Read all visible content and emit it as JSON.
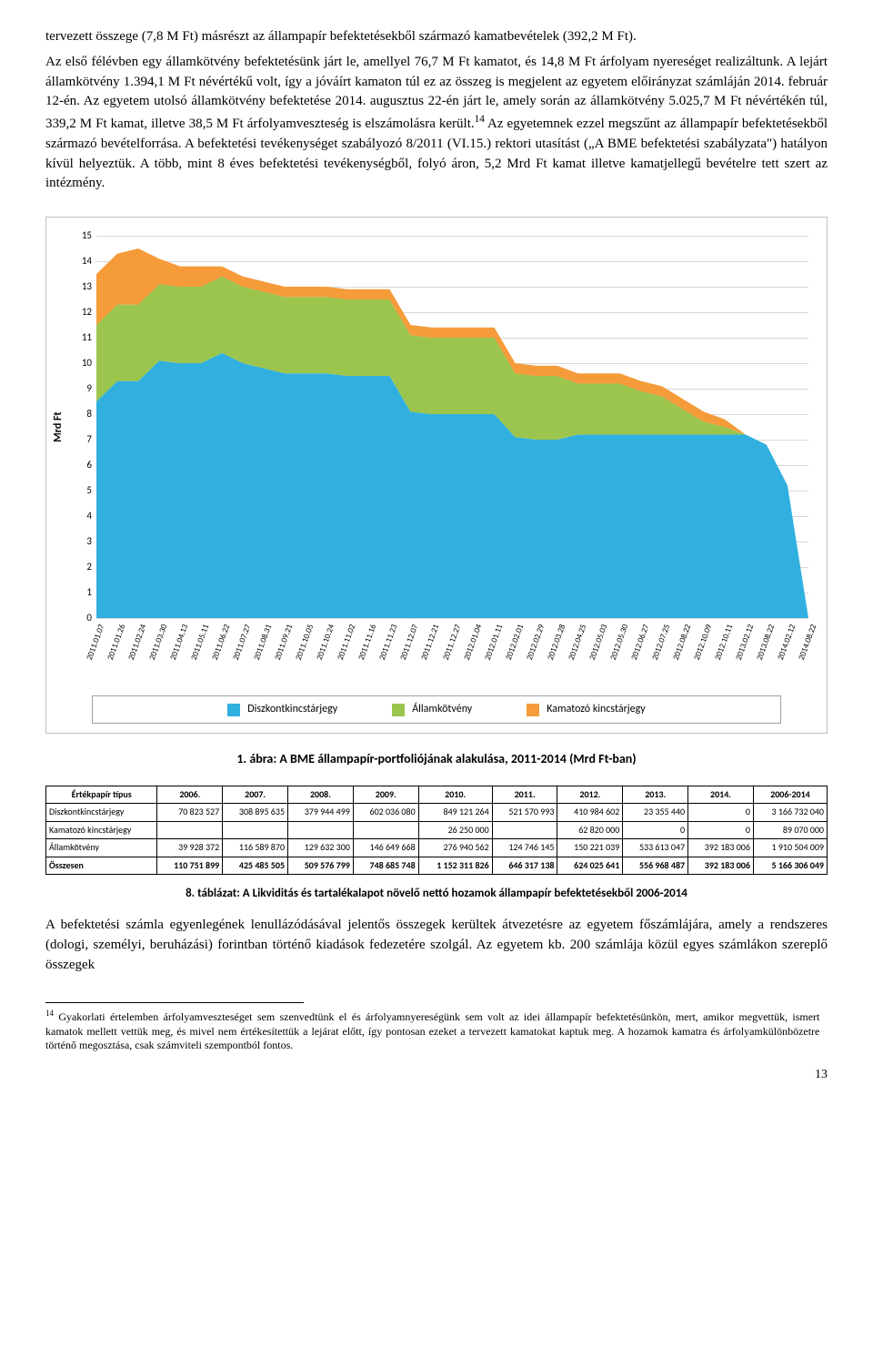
{
  "paragraphs": {
    "p1": "tervezett összege (7,8 M Ft) másrészt az állampapír befektetésekből származó kamatbevételek (392,2 M Ft).",
    "p2_prefix": "Az első félévben egy államkötvény befektetésünk járt le, amellyel 76,7 M Ft kamatot, és 14,8 M Ft árfolyam nyereséget realizáltunk. A lejárt államkötvény 1.394,1 M Ft névértékű volt, így a jóváírt kamaton túl ez az összeg is megjelent az egyetem előirányzat számláján 2014. február 12-én. Az egyetem utolsó államkötvény befektetése 2014. augusztus 22-én járt le, amely során az államkötvény 5.025,7 M Ft névértékén túl, 339,2 M Ft kamat, illetve 38,5 M Ft árfolyamveszteség is elszámolásra került.",
    "sup14": "14",
    "p2_suffix": " Az egyetemnek ezzel megszűnt az állampapír befektetésekből származó bevételforrása. A befektetési tevékenységet szabályozó 8/2011 (VI.15.) rektori utasítást („A BME befektetési szabályzata\") hatályon kívül helyeztük. A több, mint 8 éves befektetési tevékenységből, folyó áron, 5,2 Mrd Ft kamat illetve kamatjellegű bevételre tett szert az intézmény."
  },
  "chart": {
    "type": "area",
    "y_label": "Mrd Ft",
    "y_ticks": [
      0,
      1,
      2,
      3,
      4,
      5,
      6,
      7,
      8,
      9,
      10,
      11,
      12,
      13,
      14,
      15
    ],
    "ylim": [
      0,
      15
    ],
    "x_labels": [
      "2011.01.07",
      "2011.01.26",
      "2011.02.24",
      "2011.03.30",
      "2011.04.13",
      "2011.05.11",
      "2011.06.22",
      "2011.07.27",
      "2011.08.31",
      "2011.09.21",
      "2011.10.05",
      "2011.10.24",
      "2011.11.02",
      "2011.11.16",
      "2011.11.23",
      "2011.12.07",
      "2011.12.21",
      "2011.12.27",
      "2012.01.04",
      "2012.01.11",
      "2012.02.01",
      "2012.02.29",
      "2012.03.28",
      "2012.04.25",
      "2012.05.03",
      "2012.05.30",
      "2012.06.27",
      "2012.07.25",
      "2012.08.22",
      "2012.10.09",
      "2012.10.11",
      "2013.02.12",
      "2013.08.22",
      "2014.02.12",
      "2014.08.22"
    ],
    "series": [
      {
        "name": "Diszkontkincstárjegy",
        "color": "#31b0e0",
        "values": [
          8.5,
          9.3,
          9.3,
          10.1,
          10.0,
          10.0,
          10.4,
          10.0,
          9.8,
          9.6,
          9.6,
          9.6,
          9.5,
          9.5,
          9.5,
          8.1,
          8.0,
          8.0,
          8.0,
          8.0,
          7.1,
          7.0,
          7.0,
          7.2,
          7.2,
          7.2,
          7.2,
          7.2,
          7.2,
          7.2,
          7.2,
          7.2,
          6.8,
          5.2,
          0.0
        ]
      },
      {
        "name": "Államkötvény",
        "color": "#9cc54d",
        "values": [
          3.0,
          3.0,
          3.0,
          3.0,
          3.0,
          3.0,
          3.0,
          3.0,
          3.0,
          3.0,
          3.0,
          3.0,
          3.0,
          3.0,
          3.0,
          3.0,
          3.0,
          3.0,
          3.0,
          3.0,
          2.5,
          2.5,
          2.5,
          2.0,
          2.0,
          2.0,
          1.7,
          1.5,
          1.0,
          0.5,
          0.3,
          0.0,
          0.0,
          0.0,
          0.0
        ]
      },
      {
        "name": "Kamatozó kincstárjegy",
        "color": "#f59b3a",
        "values": [
          2.0,
          2.0,
          2.2,
          1.0,
          0.8,
          0.8,
          0.4,
          0.4,
          0.4,
          0.4,
          0.4,
          0.4,
          0.4,
          0.4,
          0.4,
          0.4,
          0.4,
          0.4,
          0.4,
          0.4,
          0.4,
          0.4,
          0.4,
          0.4,
          0.4,
          0.4,
          0.4,
          0.4,
          0.4,
          0.4,
          0.3,
          0.0,
          0.0,
          0.0,
          0.0
        ]
      }
    ],
    "background_color": "#ffffff",
    "grid_color": "#d9d9d9"
  },
  "figure_caption": "1. ábra: A BME állampapír-portfoliójának alakulása, 2011-2014 (Mrd Ft-ban)",
  "table": {
    "columns": [
      "Értékpapír típus",
      "2006.",
      "2007.",
      "2008.",
      "2009.",
      "2010.",
      "2011.",
      "2012.",
      "2013.",
      "2014.",
      "2006-2014"
    ],
    "rows": [
      [
        "Diszkontkincstárjegy",
        "70 823 527",
        "308 895 635",
        "379 944 499",
        "602 036 080",
        "849 121 264",
        "521 570 993",
        "410 984 602",
        "23 355 440",
        "0",
        "3 166 732 040"
      ],
      [
        "Kamatozó kincstárjegy",
        "",
        "",
        "",
        "",
        "26 250 000",
        "",
        "62 820 000",
        "0",
        "0",
        "89 070 000"
      ],
      [
        "Államkötvény",
        "39 928 372",
        "116 589 870",
        "129 632 300",
        "146 649 668",
        "276 940 562",
        "124 746 145",
        "150 221 039",
        "533 613 047",
        "392 183 006",
        "1 910 504 009"
      ],
      [
        "Összesen",
        "110 751 899",
        "425 485 505",
        "509 576 799",
        "748 685 748",
        "1 152 311 826",
        "646 317 138",
        "624 025 641",
        "556 968 487",
        "392 183 006",
        "5 166 306 049"
      ]
    ]
  },
  "table_caption": "8. táblázat: A Likviditás és tartalékalapot növelő nettó hozamok állampapír befektetésekből 2006-2014",
  "paragraph3": "A befektetési számla egyenlegének lenullázódásával jelentős összegek kerültek átvezetésre az egyetem főszámlájára, amely a rendszeres (dologi, személyi, beruházási) forintban történő kiadások fedezetére szolgál. Az egyetem kb. 200 számlája közül egyes számlákon szereplő összegek",
  "footnote": {
    "marker": "14",
    "text": " Gyakorlati értelemben árfolyamveszteséget sem szenvedtünk el és árfolyamnyereségünk sem volt az idei állampapír befektetésünkön, mert, amikor megvettük, ismert kamatok mellett vettük meg, és mivel nem értékesítettük a lejárat előtt, így pontosan ezeket a tervezett kamatokat kaptuk meg. A hozamok kamatra és árfolyamkülönbözetre történő megosztása, csak számviteli szempontból fontos."
  },
  "page_number": "13"
}
